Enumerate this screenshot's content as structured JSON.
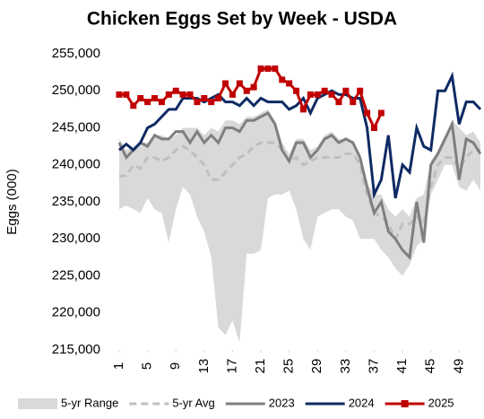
{
  "chart_data": {
    "type": "line",
    "title": "Chicken Eggs Set by Week - USDA",
    "y_label": "Eggs (000)",
    "x": [
      1,
      2,
      3,
      4,
      5,
      6,
      7,
      8,
      9,
      10,
      11,
      12,
      13,
      14,
      15,
      16,
      17,
      18,
      19,
      20,
      21,
      22,
      23,
      24,
      25,
      26,
      27,
      28,
      29,
      30,
      31,
      32,
      33,
      34,
      35,
      36,
      37,
      38,
      39,
      40,
      41,
      42,
      43,
      44,
      45,
      46,
      47,
      48,
      49,
      50,
      51,
      52
    ],
    "xlim": [
      1,
      52
    ],
    "xticks": [
      1,
      5,
      9,
      13,
      17,
      21,
      25,
      29,
      33,
      37,
      41,
      45,
      49
    ],
    "ylim": [
      215000,
      255000
    ],
    "yticks": [
      {
        "value": 215000,
        "label": "215,000"
      },
      {
        "value": 220000,
        "label": "220,000"
      },
      {
        "value": 225000,
        "label": "225,000"
      },
      {
        "value": 230000,
        "label": "230,000"
      },
      {
        "value": 235000,
        "label": "235,000"
      },
      {
        "value": 240000,
        "label": "240,000"
      },
      {
        "value": 245000,
        "label": "245,000"
      },
      {
        "value": 250000,
        "label": "250,000"
      },
      {
        "value": 255000,
        "label": "255,000"
      }
    ],
    "series": [
      {
        "name": "5-yr Range",
        "style": "range",
        "color": "#d9d9d9",
        "high": [
          243500,
          242000,
          242500,
          243000,
          243000,
          244000,
          244000,
          243500,
          244000,
          245000,
          245000,
          245000,
          244000,
          245000,
          244500,
          246000,
          246000,
          245500,
          246500,
          246500,
          247000,
          247500,
          246000,
          243000,
          241500,
          243500,
          243500,
          242000,
          242500,
          244000,
          244500,
          243500,
          243500,
          243000,
          241500,
          237500,
          236000,
          236000,
          234000,
          233000,
          234000,
          233000,
          235500,
          236000,
          240500,
          242000,
          244000,
          246000,
          245000,
          244000,
          244500,
          243000
        ],
        "low": [
          234000,
          234500,
          234000,
          233500,
          235500,
          234000,
          233500,
          229500,
          234000,
          237000,
          236000,
          233000,
          231000,
          227500,
          218000,
          217000,
          219000,
          216000,
          228000,
          228000,
          228500,
          235500,
          236000,
          236000,
          236500,
          234000,
          230000,
          228500,
          233000,
          233500,
          234000,
          234000,
          233000,
          232500,
          230000,
          230000,
          230000,
          228500,
          227500,
          226000,
          225000,
          226500,
          229000,
          230000,
          236000,
          238000,
          240000,
          240000,
          237000,
          236500,
          238000,
          236500
        ]
      },
      {
        "name": "5-yr Avg",
        "style": "dashed",
        "color": "#bfbfbf",
        "values": [
          238500,
          238500,
          240000,
          239500,
          241000,
          241000,
          240500,
          241000,
          242000,
          242500,
          242000,
          241000,
          240000,
          238000,
          238000,
          239000,
          240000,
          241000,
          241500,
          242500,
          243000,
          243000,
          243000,
          242000,
          240500,
          241000,
          240000,
          240500,
          241000,
          241000,
          241000,
          241000,
          241500,
          241500,
          240000,
          236000,
          233500,
          233000,
          232000,
          230000,
          232000,
          232000,
          233000,
          232000,
          237000,
          240000,
          241000,
          241000,
          239500,
          241000,
          242000,
          242000
        ]
      },
      {
        "name": "2023",
        "style": "solid",
        "color": "#7f7f7f",
        "values": [
          243000,
          241000,
          242000,
          243000,
          242500,
          244000,
          243500,
          243500,
          244500,
          244500,
          243000,
          244500,
          243000,
          244000,
          243000,
          245000,
          245000,
          244500,
          246000,
          246000,
          246500,
          247000,
          245500,
          242000,
          240500,
          243000,
          243000,
          241000,
          242000,
          243500,
          244000,
          243000,
          243500,
          243000,
          241000,
          237000,
          233500,
          235000,
          231000,
          230000,
          228500,
          227500,
          235000,
          229500,
          240000,
          241500,
          243500,
          245500,
          238000,
          243500,
          243000,
          241500
        ]
      },
      {
        "name": "2024",
        "style": "solid",
        "color": "#0e2a63",
        "values": [
          242000,
          242800,
          242000,
          243000,
          245000,
          245500,
          246500,
          247500,
          247500,
          249000,
          249000,
          249000,
          248500,
          249000,
          249500,
          248500,
          248500,
          248000,
          249000,
          248000,
          249000,
          248500,
          248500,
          248500,
          247500,
          248000,
          249000,
          247000,
          249000,
          249500,
          250000,
          249500,
          249500,
          249000,
          249000,
          245000,
          236000,
          238000,
          244000,
          235500,
          240000,
          239000,
          245000,
          242500,
          242000,
          250000,
          250000,
          252000,
          245500,
          248500,
          248500,
          247500
        ]
      },
      {
        "name": "2025",
        "style": "marker",
        "color": "#c00000",
        "values": [
          249500,
          249500,
          248000,
          249000,
          248500,
          249000,
          248500,
          249500,
          250000,
          249500,
          249500,
          248500,
          249000,
          248500,
          249000,
          251000,
          249500,
          251000,
          250000,
          250500,
          253000,
          253000,
          253000,
          251500,
          251000,
          250000,
          247500,
          249500,
          249500,
          250000,
          249500,
          248500,
          250000,
          248500,
          250000,
          247000,
          245000,
          247000,
          null,
          null,
          null,
          null,
          null,
          null,
          null,
          null,
          null,
          null,
          null,
          null,
          null,
          null
        ]
      }
    ]
  }
}
